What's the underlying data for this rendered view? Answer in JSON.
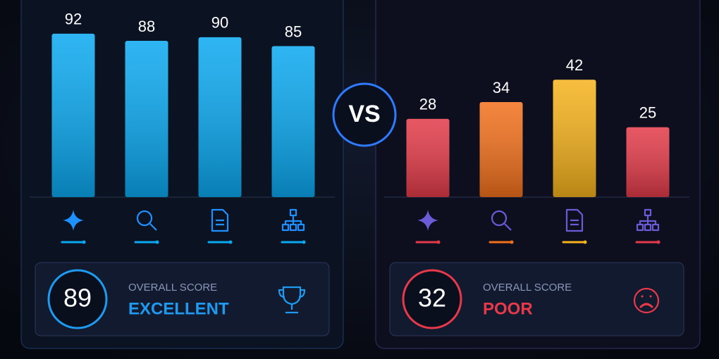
{
  "vs": "VS",
  "chart_data": [
    {
      "type": "bar",
      "categories": [
        null,
        null,
        null,
        null
      ],
      "values": [
        92,
        88,
        90,
        85
      ],
      "colors": [
        "#0aa8f0",
        "#0aa8f0",
        "#0aa8f0",
        "#0aa8f0"
      ],
      "ylim": [
        0,
        107
      ]
    },
    {
      "type": "bar",
      "categories": [
        null,
        null,
        null,
        null
      ],
      "values": [
        28,
        34,
        42,
        25
      ],
      "colors": [
        "#e23a48",
        "#f2701c",
        "#f5b21c",
        "#e23a48"
      ],
      "ylim": [
        0,
        68
      ]
    }
  ],
  "summaries": [
    {
      "score": 89,
      "label": "OVERALL SCORE",
      "rating": "EXCELLENT",
      "color": "#1e9bf0"
    },
    {
      "score": 32,
      "label": "OVERALL SCORE",
      "rating": "POOR",
      "color": "#e8394a"
    }
  ]
}
